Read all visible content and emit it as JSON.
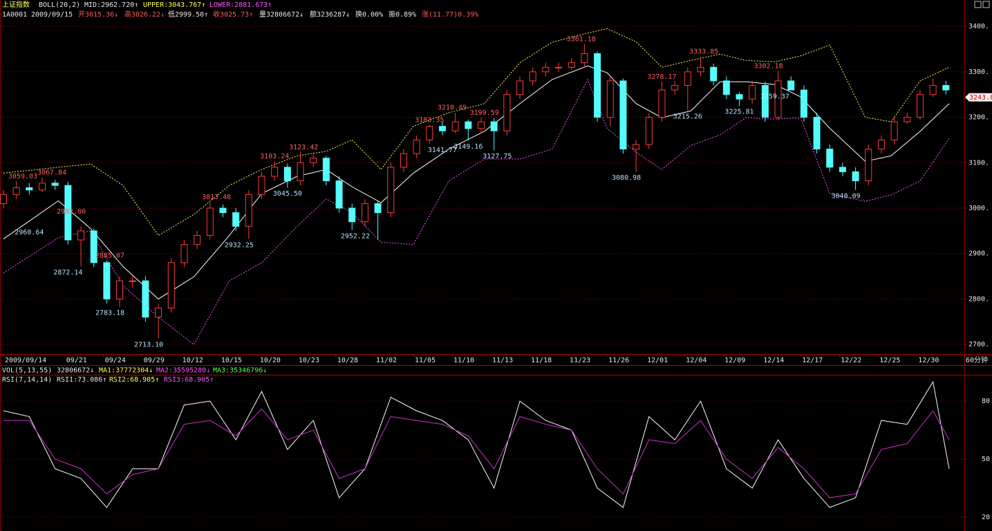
{
  "header": {
    "symbol_name": "上证指数",
    "indicator": "BOLL(20,2)",
    "mid": "MID:2962.720↑",
    "upper": "UPPER:3043.767↑",
    "lower": "LOWER:2881.673↑",
    "code": "1A0001",
    "date": "2009/09/15",
    "open": "开3015.36↓",
    "high": "高3026.22↓",
    "low": "低2999.50↑",
    "close": "收3025.73↑",
    "volume": "量32806672↓",
    "amount": "额3236287↓",
    "turnover": "换0.00%",
    "amplitude": "振0.89%",
    "change": "涨(11.77)0.39%"
  },
  "vol_header": {
    "indicator": "VOL(5,13,55)",
    "vol": "32806672↓",
    "ma1": "MA1:37772304↓",
    "ma2": "MA2:35595280↓",
    "ma3": "MA3:35346796↓"
  },
  "rsi_header": {
    "indicator": "RSI(7,14,14)",
    "rsi1": "RSI1:73.086↑",
    "rsi2": "RSI2:68.905↑",
    "rsi3": "RSI3:68.905↑"
  },
  "period": "60分钟",
  "chart_data": [
    {
      "type": "candlestick",
      "x": [
        0,
        4,
        8,
        12,
        16,
        20,
        24,
        28,
        32,
        36,
        40,
        44,
        48,
        52,
        56,
        60,
        64,
        68,
        72,
        76,
        80,
        84,
        88,
        92,
        96,
        100,
        104,
        108,
        112,
        116,
        120,
        124,
        128,
        132,
        136,
        140,
        144,
        148,
        152,
        156,
        160,
        164,
        168,
        172,
        176,
        180,
        184,
        188,
        192,
        196,
        200,
        204,
        208,
        212,
        216,
        220,
        224,
        228,
        232,
        236,
        240,
        244,
        248,
        252,
        256,
        260,
        264,
        268,
        272,
        276,
        280,
        284,
        288,
        292
      ],
      "open": [
        3010,
        3030,
        3045,
        3040,
        3055,
        3050,
        2930,
        2950,
        2880,
        2800,
        2840,
        2840,
        2760,
        2780,
        2880,
        2920,
        2940,
        3000,
        2990,
        2960,
        3030,
        3070,
        3090,
        3060,
        3100,
        3110,
        3060,
        3000,
        2970,
        3010,
        2990,
        3090,
        3120,
        3150,
        3180,
        3170,
        3190,
        3175,
        3190,
        3170,
        3250,
        3280,
        3300,
        3310,
        3310,
        3320,
        3340,
        3200,
        3280,
        3130,
        3140,
        3200,
        3260,
        3270,
        3300,
        3310,
        3280,
        3250,
        3240,
        3270,
        3200,
        3280,
        3260,
        3200,
        3130,
        3090,
        3080,
        3060,
        3130,
        3150,
        3190,
        3200,
        3250,
        3270
      ],
      "high": [
        3040,
        3059,
        3055,
        3067,
        3062,
        3058,
        2960,
        2955,
        2885,
        2850,
        2852,
        2850,
        2790,
        2890,
        2930,
        2950,
        3013,
        3008,
        3000,
        3040,
        3080,
        3103,
        3098,
        3123,
        3120,
        3115,
        3070,
        3010,
        3020,
        3015,
        3100,
        3130,
        3160,
        3183,
        3190,
        3210,
        3195,
        3199,
        3198,
        3260,
        3290,
        3310,
        3320,
        3320,
        3330,
        3361,
        3345,
        3290,
        3285,
        3150,
        3210,
        3278,
        3280,
        3310,
        3333,
        3318,
        3290,
        3255,
        3280,
        3278,
        3302,
        3290,
        3270,
        3210,
        3140,
        3100,
        3090,
        3140,
        3160,
        3200,
        3210,
        3260,
        3285,
        3280
      ],
      "low": [
        3000,
        3020,
        3030,
        3035,
        3040,
        2920,
        2872,
        2870,
        2790,
        2783,
        2825,
        2750,
        2713,
        2770,
        2870,
        2910,
        2930,
        2980,
        2950,
        2932,
        3020,
        3060,
        3045,
        3050,
        3090,
        3050,
        2990,
        2952,
        2960,
        2930,
        2980,
        3080,
        3110,
        3141,
        3160,
        3165,
        3149,
        3165,
        3127,
        3160,
        3240,
        3270,
        3290,
        3300,
        3305,
        3310,
        3190,
        3180,
        3120,
        3080,
        3130,
        3190,
        3250,
        3215,
        3290,
        3270,
        3240,
        3225,
        3230,
        3190,
        3195,
        3259,
        3190,
        3120,
        3080,
        3070,
        3040,
        3050,
        3120,
        3140,
        3185,
        3195,
        3245,
        3250
      ],
      "close": [
        3030,
        3045,
        3040,
        3055,
        3050,
        2930,
        2950,
        2880,
        2800,
        2840,
        2840,
        2760,
        2780,
        2880,
        2920,
        2940,
        3000,
        2990,
        2960,
        3030,
        3070,
        3090,
        3060,
        3100,
        3110,
        3060,
        3000,
        2970,
        3010,
        2990,
        3090,
        3120,
        3150,
        3180,
        3170,
        3190,
        3175,
        3190,
        3170,
        3250,
        3280,
        3300,
        3310,
        3310,
        3320,
        3340,
        3200,
        3280,
        3130,
        3140,
        3200,
        3260,
        3270,
        3300,
        3310,
        3280,
        3250,
        3240,
        3270,
        3200,
        3280,
        3260,
        3200,
        3130,
        3090,
        3080,
        3060,
        3130,
        3150,
        3190,
        3200,
        3250,
        3270,
        3260
      ],
      "up_color": "#ff3c3c",
      "down_color": "#54fcfc",
      "series": [
        {
          "color": "#ffffff",
          "style": "solid",
          "x": [
            0,
            17,
            27,
            37,
            48,
            59,
            70,
            80,
            91,
            100,
            108,
            117,
            127,
            138,
            149,
            160,
            170,
            181,
            187,
            196,
            204,
            213,
            222,
            230,
            239,
            247,
            256,
            267,
            275,
            284,
            293
          ],
          "values": [
            2932,
            3016,
            2955,
            2872,
            2800,
            2849,
            2940,
            3032,
            3070,
            3085,
            3047,
            3012,
            3077,
            3130,
            3169,
            3230,
            3283,
            3313,
            3298,
            3230,
            3199,
            3214,
            3278,
            3278,
            3272,
            3245,
            3176,
            3103,
            3115,
            3169,
            3230
          ]
        },
        {
          "color": "#ffff54",
          "style": "dashed",
          "x": [
            0,
            17,
            27,
            37,
            48,
            59,
            70,
            80,
            91,
            100,
            108,
            117,
            127,
            138,
            149,
            160,
            170,
            181,
            187,
            196,
            204,
            213,
            222,
            230,
            239,
            247,
            256,
            267,
            275,
            284,
            293
          ],
          "values": [
            3077,
            3090,
            3097,
            3050,
            2940,
            2986,
            3050,
            3085,
            3115,
            3125,
            3150,
            3085,
            3180,
            3210,
            3230,
            3320,
            3365,
            3385,
            3395,
            3366,
            3310,
            3325,
            3339,
            3325,
            3322,
            3335,
            3359,
            3200,
            3190,
            3280,
            3310
          ]
        },
        {
          "color": "#ff54ff",
          "style": "dashed",
          "x": [
            0,
            17,
            27,
            37,
            48,
            59,
            70,
            80,
            91,
            100,
            108,
            117,
            127,
            138,
            149,
            160,
            170,
            181,
            187,
            196,
            204,
            213,
            222,
            230,
            239,
            247,
            256,
            267,
            275,
            284,
            293
          ],
          "values": [
            2857,
            2935,
            2950,
            2830,
            2760,
            2700,
            2840,
            2880,
            2960,
            3020,
            2990,
            2925,
            2920,
            3060,
            3108,
            3108,
            3130,
            3283,
            3176,
            3123,
            3085,
            3138,
            3161,
            3199,
            3196,
            3199,
            3032,
            3015,
            3029,
            3060,
            3153
          ]
        }
      ],
      "high_label_color": "#ff6060",
      "low_label_color": "#b8e0ff",
      "high_labels": [
        {
          "x": 6,
          "value": 3059.03,
          "label": "3059.03"
        },
        {
          "x": 15,
          "value": 3067.84,
          "label": "3067.84"
        },
        {
          "x": 21,
          "value": 2982.0,
          "label": "2982.00"
        },
        {
          "x": 33,
          "value": 2885.07,
          "label": "2885.07"
        },
        {
          "x": 66,
          "value": 3013.48,
          "label": "3013.48"
        },
        {
          "x": 84,
          "value": 3103.24,
          "label": "3103.24"
        },
        {
          "x": 93,
          "value": 3123.42,
          "label": "3123.42"
        },
        {
          "x": 132,
          "value": 3183.35,
          "label": "3183.35"
        },
        {
          "x": 139,
          "value": 3210.49,
          "label": "3210.49"
        },
        {
          "x": 149,
          "value": 3199.59,
          "label": "3199.59"
        },
        {
          "x": 179,
          "value": 3361.18,
          "label": "3361.18"
        },
        {
          "x": 204,
          "value": 3278.17,
          "label": "3278.17"
        },
        {
          "x": 217,
          "value": 3333.85,
          "label": "3333.85"
        },
        {
          "x": 237,
          "value": 3302.18,
          "label": "3302.18"
        }
      ],
      "low_labels": [
        {
          "x": 8,
          "value": 2960.64,
          "label": "2960.64"
        },
        {
          "x": 20,
          "value": 2872.14,
          "label": "2872.14"
        },
        {
          "x": 33,
          "value": 2783.18,
          "label": "2783.18"
        },
        {
          "x": 45,
          "value": 2713.1,
          "label": "2713.10"
        },
        {
          "x": 73,
          "value": 2932.25,
          "label": "2932.25"
        },
        {
          "x": 88,
          "value": 3045.5,
          "label": "3045.50"
        },
        {
          "x": 109,
          "value": 2952.22,
          "label": "2952.22"
        },
        {
          "x": 136,
          "value": 3141.77,
          "label": "3141.77"
        },
        {
          "x": 144,
          "value": 3149.16,
          "label": "3149.16"
        },
        {
          "x": 153,
          "value": 3127.75,
          "label": "3127.75"
        },
        {
          "x": 193,
          "value": 3080.98,
          "label": "3080.98"
        },
        {
          "x": 212,
          "value": 3215.26,
          "label": "3215.26"
        },
        {
          "x": 228,
          "value": 3225.81,
          "label": "3225.81"
        },
        {
          "x": 239,
          "value": 3259.37,
          "label": "3259.37"
        },
        {
          "x": 261,
          "value": 3040.09,
          "label": "3040.09"
        }
      ],
      "last_price": 3243.8,
      "xlim": [
        0,
        296
      ],
      "xticks": [
        {
          "value": 0,
          "label": "2009/09/14"
        },
        {
          "value": 19,
          "label": "09/21"
        },
        {
          "value": 31,
          "label": "09/24"
        },
        {
          "value": 43,
          "label": "09/29"
        },
        {
          "value": 55,
          "label": "10/12"
        },
        {
          "value": 67,
          "label": "10/15"
        },
        {
          "value": 79,
          "label": "10/20"
        },
        {
          "value": 91,
          "label": "10/23"
        },
        {
          "value": 103,
          "label": "10/28"
        },
        {
          "value": 115,
          "label": "11/02"
        },
        {
          "value": 127,
          "label": "11/05"
        },
        {
          "value": 139,
          "label": "11/10"
        },
        {
          "value": 151,
          "label": "11/13"
        },
        {
          "value": 163,
          "label": "11/18"
        },
        {
          "value": 175,
          "label": "11/23"
        },
        {
          "value": 187,
          "label": "11/26"
        },
        {
          "value": 199,
          "label": "12/01"
        },
        {
          "value": 211,
          "label": "12/04"
        },
        {
          "value": 223,
          "label": "12/09"
        },
        {
          "value": 235,
          "label": "12/14"
        },
        {
          "value": 247,
          "label": "12/17"
        },
        {
          "value": 259,
          "label": "12/22"
        },
        {
          "value": 271,
          "label": "12/25"
        },
        {
          "value": 283,
          "label": "12/30"
        }
      ],
      "ylim": [
        2679,
        3458
      ],
      "yticks": [
        {
          "value": 2700,
          "label": "2700."
        },
        {
          "value": 2800,
          "label": "2800."
        },
        {
          "value": 2900,
          "label": "2900."
        },
        {
          "value": 3000,
          "label": "3000."
        },
        {
          "value": 3100,
          "label": "3100."
        },
        {
          "value": 3200,
          "label": "3200."
        },
        {
          "value": 3300,
          "label": "3300."
        },
        {
          "value": 3400,
          "label": "3400."
        }
      ],
      "grid": true
    },
    {
      "type": "line",
      "x": [
        0,
        8,
        16,
        24,
        32,
        40,
        48,
        56,
        64,
        72,
        80,
        88,
        96,
        104,
        112,
        120,
        128,
        136,
        144,
        152,
        160,
        168,
        176,
        184,
        192,
        200,
        208,
        216,
        224,
        232,
        240,
        248,
        256,
        264,
        272,
        280,
        288,
        293
      ],
      "series": [
        {
          "color": "#ffffff",
          "values": [
            75,
            72,
            45,
            40,
            25,
            45,
            45,
            78,
            80,
            60,
            85,
            55,
            70,
            30,
            45,
            82,
            75,
            70,
            60,
            35,
            80,
            70,
            65,
            35,
            25,
            72,
            60,
            80,
            45,
            35,
            60,
            40,
            25,
            30,
            70,
            68,
            90,
            45
          ]
        },
        {
          "color": "#cc33cc",
          "values": [
            70,
            70,
            50,
            45,
            32,
            42,
            45,
            68,
            70,
            62,
            76,
            60,
            65,
            40,
            45,
            72,
            70,
            68,
            62,
            45,
            72,
            68,
            65,
            45,
            32,
            60,
            58,
            70,
            50,
            40,
            56,
            45,
            30,
            32,
            55,
            58,
            75,
            60
          ]
        }
      ],
      "xlim": [
        0,
        296
      ],
      "ylim": [
        12.8,
        91.5
      ],
      "yticks": [
        20,
        50,
        80
      ],
      "grid": true
    }
  ]
}
